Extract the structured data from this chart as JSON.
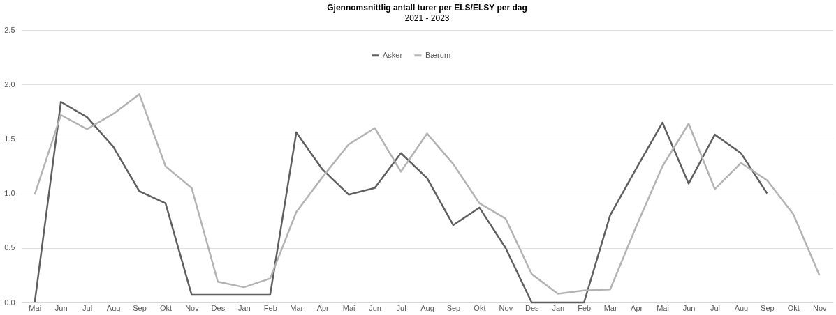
{
  "chart_data": {
    "type": "line",
    "title": "Gjennomsnittlig antall turer per ELS/ELSY per dag",
    "subtitle": "2021 - 2023",
    "categories": [
      "Mai",
      "Jun",
      "Jul",
      "Aug",
      "Sep",
      "Okt",
      "Nov",
      "Des",
      "Jan",
      "Feb",
      "Mar",
      "Apr",
      "Mai",
      "Jun",
      "Jul",
      "Aug",
      "Sep",
      "Okt",
      "Nov",
      "Des",
      "Jan",
      "Feb",
      "Mar",
      "Apr",
      "Mai",
      "Jun",
      "Jul",
      "Aug",
      "Sep",
      "Okt",
      "Nov"
    ],
    "series": [
      {
        "name": "Asker",
        "color": "#5f5f5f",
        "values": [
          0,
          1.84,
          1.7,
          1.43,
          1.02,
          0.91,
          0.07,
          0.07,
          0.07,
          0.07,
          1.56,
          1.22,
          0.99,
          1.05,
          1.37,
          1.14,
          0.71,
          0.87,
          0.5,
          0,
          0,
          0,
          0.8,
          1.23,
          1.65,
          1.09,
          1.54,
          1.37,
          1.0,
          null,
          null
        ]
      },
      {
        "name": "Bærum",
        "color": "#b3b3b3",
        "values": [
          0.99,
          1.72,
          1.59,
          1.73,
          1.91,
          1.25,
          1.05,
          0.19,
          0.14,
          0.22,
          0.83,
          1.15,
          1.45,
          1.6,
          1.2,
          1.55,
          1.27,
          0.91,
          0.77,
          0.26,
          0.08,
          0.11,
          0.12,
          0.7,
          1.25,
          1.64,
          1.04,
          1.28,
          1.12,
          0.81,
          0.25
        ]
      }
    ],
    "ylim": [
      0,
      2.5
    ],
    "yticks": [
      {
        "value": 0,
        "label": "0.0"
      },
      0.5,
      {
        "value": 1,
        "label": "1.0"
      },
      1.5,
      {
        "value": 2,
        "label": "2.0"
      },
      2.5
    ],
    "grid": "y",
    "legend": "top",
    "marker": "none",
    "line_style": "solid"
  }
}
